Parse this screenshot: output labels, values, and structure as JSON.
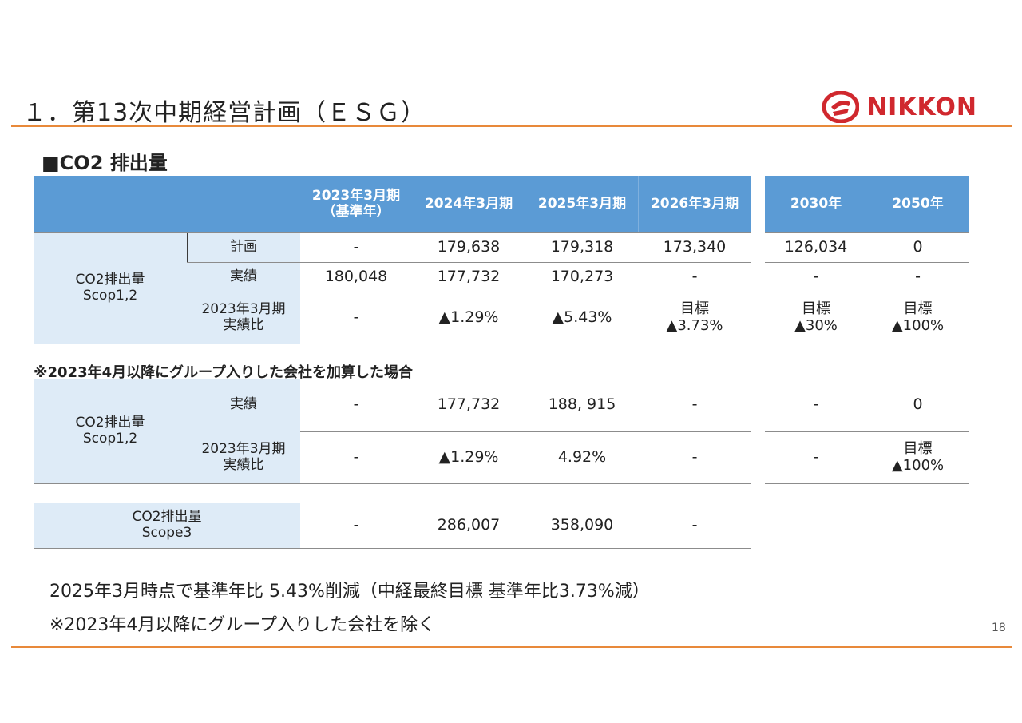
{
  "header": {
    "title": "１．第13次中期経営計画（ＥＳＧ）",
    "logo_text": "NIKKON",
    "brand_color": "#d0282e",
    "accent_color": "#e8893a"
  },
  "section_title": "■CO2 排出量",
  "table": {
    "columns": [
      "2023年3月期",
      "（基準年）",
      "2024年3月期",
      "2025年3月期",
      "2026年3月期",
      "2030年",
      "2050年"
    ],
    "group1": {
      "label_line1": "CO2排出量",
      "label_line2": "Scop1,2",
      "rows": [
        {
          "label": "計画",
          "values": [
            "-",
            "179,638",
            "179,318",
            "173,340",
            "126,034",
            "0"
          ]
        },
        {
          "label": "実績",
          "values": [
            "180,048",
            "177,732",
            "170,273",
            "-",
            "-",
            "-"
          ]
        },
        {
          "label_line1": "2023年3月期",
          "label_line2": "実績比",
          "values": [
            "-",
            "▲1.29%",
            "▲5.43%"
          ],
          "target_2026": [
            "目標",
            "▲3.73%"
          ],
          "target_2030": [
            "目標",
            "▲30%"
          ],
          "target_2050": [
            "目標",
            "▲100%"
          ]
        }
      ]
    },
    "note": "※2023年4月以降にグループ入りした会社を加算した場合",
    "group2": {
      "label_line1": "CO2排出量",
      "label_line2": "Scop1,2",
      "rows": [
        {
          "label": "実績",
          "values": [
            "-",
            "177,732",
            "188, 915",
            "-",
            "-",
            "0"
          ]
        },
        {
          "label_line1": "2023年3月期",
          "label_line2": "実績比",
          "values": [
            "-",
            "▲1.29%",
            "4.92%",
            "-",
            "-"
          ],
          "target_2050": [
            "目標",
            "▲100%"
          ]
        }
      ]
    },
    "group3": {
      "label_line1": "CO2排出量",
      "label_line2": "Scope3",
      "values": [
        "-",
        "286,007",
        "358,090",
        "-"
      ]
    }
  },
  "footer": {
    "line1": "2025年3月時点で基準年比 5.43%削減（中経最終目標 基準年比3.73%減）",
    "line2": "※2023年4月以降にグループ入りした会社を除く",
    "page_number": "18"
  }
}
